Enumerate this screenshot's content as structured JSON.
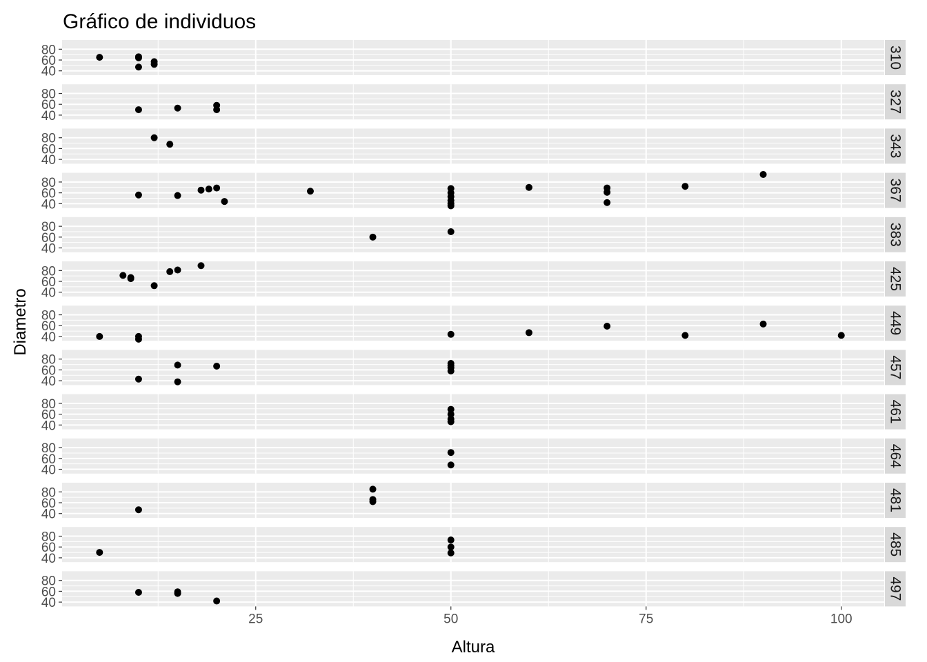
{
  "chart_data": {
    "type": "scatter",
    "facet": "rows",
    "title": "Gráfico de individuos",
    "xlabel": "Altura",
    "ylabel": "Diametro",
    "x_ticks": [
      "25",
      "50",
      "75",
      "100"
    ],
    "y_ticks": [
      "40",
      "60",
      "80"
    ],
    "xlim": [
      0.2,
      105.5
    ],
    "ylim": [
      32,
      97
    ],
    "panel_background": "#EBEBEB",
    "strip_background": "#D9D9D9",
    "grid_color": "#FFFFFF",
    "point_color": "#000000",
    "panels": [
      {
        "label": "310",
        "points": [
          [
            5,
            65
          ],
          [
            10,
            66
          ],
          [
            10,
            47
          ],
          [
            10,
            64
          ],
          [
            12,
            57
          ],
          [
            12,
            52
          ]
        ]
      },
      {
        "label": "327",
        "points": [
          [
            10,
            50
          ],
          [
            15,
            53
          ],
          [
            20,
            58
          ],
          [
            20,
            50
          ]
        ]
      },
      {
        "label": "343",
        "points": [
          [
            12,
            80
          ],
          [
            14,
            68
          ]
        ]
      },
      {
        "label": "367",
        "points": [
          [
            10,
            56
          ],
          [
            15,
            55
          ],
          [
            18,
            65
          ],
          [
            19,
            67
          ],
          [
            20,
            69
          ],
          [
            21,
            44
          ],
          [
            32,
            63
          ],
          [
            50,
            68
          ],
          [
            50,
            60
          ],
          [
            50,
            53
          ],
          [
            50,
            46
          ],
          [
            50,
            40
          ],
          [
            50,
            36
          ],
          [
            60,
            70
          ],
          [
            70,
            69
          ],
          [
            70,
            61
          ],
          [
            70,
            42
          ],
          [
            80,
            72
          ],
          [
            90,
            94
          ]
        ]
      },
      {
        "label": "383",
        "points": [
          [
            40,
            60
          ],
          [
            50,
            70
          ]
        ]
      },
      {
        "label": "425",
        "points": [
          [
            8,
            71
          ],
          [
            9,
            67
          ],
          [
            9,
            65
          ],
          [
            12,
            52
          ],
          [
            14,
            78
          ],
          [
            15,
            81
          ],
          [
            18,
            89
          ]
        ]
      },
      {
        "label": "449",
        "points": [
          [
            5,
            40
          ],
          [
            10,
            40
          ],
          [
            10,
            35
          ],
          [
            50,
            44
          ],
          [
            60,
            47
          ],
          [
            70,
            59
          ],
          [
            80,
            42
          ],
          [
            90,
            63
          ],
          [
            100,
            42
          ]
        ]
      },
      {
        "label": "457",
        "points": [
          [
            10,
            43
          ],
          [
            15,
            38
          ],
          [
            15,
            69
          ],
          [
            20,
            67
          ],
          [
            50,
            72
          ],
          [
            50,
            68
          ],
          [
            50,
            64
          ],
          [
            50,
            58
          ]
        ]
      },
      {
        "label": "461",
        "points": [
          [
            50,
            69
          ],
          [
            50,
            60
          ],
          [
            50,
            51
          ],
          [
            50,
            46
          ]
        ]
      },
      {
        "label": "464",
        "points": [
          [
            50,
            71
          ],
          [
            50,
            48
          ]
        ]
      },
      {
        "label": "481",
        "points": [
          [
            10,
            47
          ],
          [
            40,
            85
          ],
          [
            40,
            66
          ],
          [
            40,
            62
          ]
        ]
      },
      {
        "label": "485",
        "points": [
          [
            5,
            50
          ],
          [
            50,
            73
          ],
          [
            50,
            60
          ],
          [
            50,
            49
          ]
        ]
      },
      {
        "label": "497",
        "points": [
          [
            10,
            58
          ],
          [
            15,
            59
          ],
          [
            15,
            56
          ],
          [
            20,
            42
          ]
        ]
      }
    ]
  }
}
